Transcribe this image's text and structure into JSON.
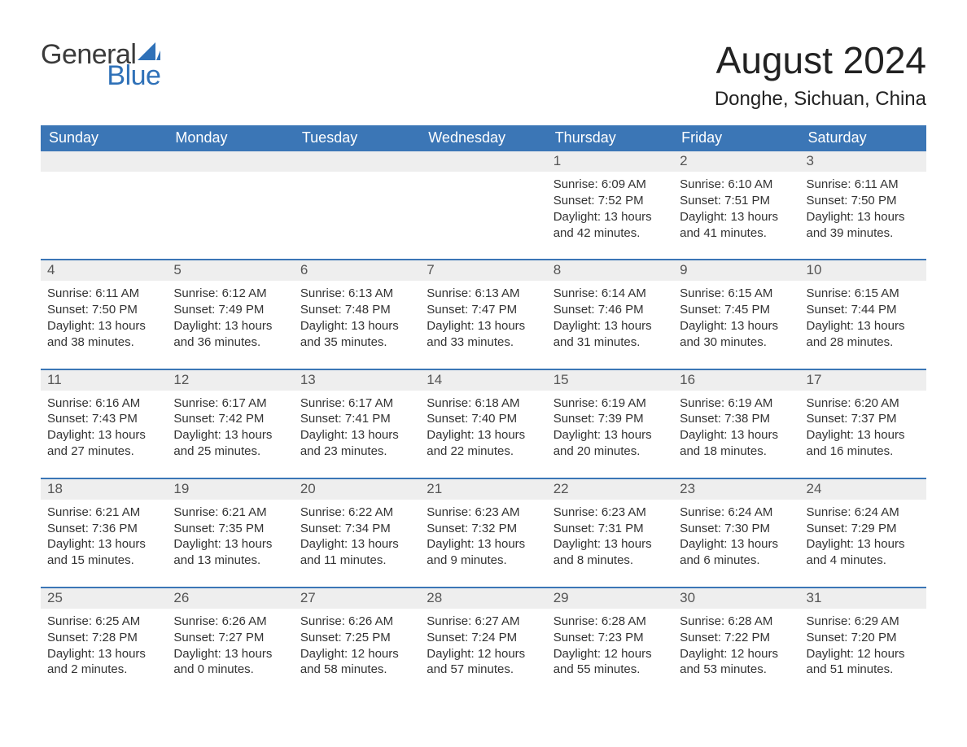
{
  "brand": {
    "word1": "General",
    "word2": "Blue",
    "word1_color": "#3a3a3a",
    "word2_color": "#2f71b8",
    "sail_color": "#2f71b8"
  },
  "header": {
    "title": "August 2024",
    "subtitle": "Donghe, Sichuan, China"
  },
  "colors": {
    "header_bg": "#3b76b6",
    "header_text": "#ffffff",
    "row_divider": "#3b76b6",
    "daynum_bg": "#eeeeee",
    "daynum_text": "#555555",
    "body_text": "#333333",
    "page_bg": "#ffffff"
  },
  "typography": {
    "title_fontsize": 46,
    "subtitle_fontsize": 24,
    "weekday_fontsize": 18,
    "daynum_fontsize": 17,
    "body_fontsize": 15,
    "font_family": "Arial"
  },
  "calendar": {
    "weekdays": [
      "Sunday",
      "Monday",
      "Tuesday",
      "Wednesday",
      "Thursday",
      "Friday",
      "Saturday"
    ],
    "weeks": [
      [
        null,
        null,
        null,
        null,
        {
          "n": "1",
          "sunrise": "6:09 AM",
          "sunset": "7:52 PM",
          "dl_h": "13",
          "dl_m": "42"
        },
        {
          "n": "2",
          "sunrise": "6:10 AM",
          "sunset": "7:51 PM",
          "dl_h": "13",
          "dl_m": "41"
        },
        {
          "n": "3",
          "sunrise": "6:11 AM",
          "sunset": "7:50 PM",
          "dl_h": "13",
          "dl_m": "39"
        }
      ],
      [
        {
          "n": "4",
          "sunrise": "6:11 AM",
          "sunset": "7:50 PM",
          "dl_h": "13",
          "dl_m": "38"
        },
        {
          "n": "5",
          "sunrise": "6:12 AM",
          "sunset": "7:49 PM",
          "dl_h": "13",
          "dl_m": "36"
        },
        {
          "n": "6",
          "sunrise": "6:13 AM",
          "sunset": "7:48 PM",
          "dl_h": "13",
          "dl_m": "35"
        },
        {
          "n": "7",
          "sunrise": "6:13 AM",
          "sunset": "7:47 PM",
          "dl_h": "13",
          "dl_m": "33"
        },
        {
          "n": "8",
          "sunrise": "6:14 AM",
          "sunset": "7:46 PM",
          "dl_h": "13",
          "dl_m": "31"
        },
        {
          "n": "9",
          "sunrise": "6:15 AM",
          "sunset": "7:45 PM",
          "dl_h": "13",
          "dl_m": "30"
        },
        {
          "n": "10",
          "sunrise": "6:15 AM",
          "sunset": "7:44 PM",
          "dl_h": "13",
          "dl_m": "28"
        }
      ],
      [
        {
          "n": "11",
          "sunrise": "6:16 AM",
          "sunset": "7:43 PM",
          "dl_h": "13",
          "dl_m": "27"
        },
        {
          "n": "12",
          "sunrise": "6:17 AM",
          "sunset": "7:42 PM",
          "dl_h": "13",
          "dl_m": "25"
        },
        {
          "n": "13",
          "sunrise": "6:17 AM",
          "sunset": "7:41 PM",
          "dl_h": "13",
          "dl_m": "23"
        },
        {
          "n": "14",
          "sunrise": "6:18 AM",
          "sunset": "7:40 PM",
          "dl_h": "13",
          "dl_m": "22"
        },
        {
          "n": "15",
          "sunrise": "6:19 AM",
          "sunset": "7:39 PM",
          "dl_h": "13",
          "dl_m": "20"
        },
        {
          "n": "16",
          "sunrise": "6:19 AM",
          "sunset": "7:38 PM",
          "dl_h": "13",
          "dl_m": "18"
        },
        {
          "n": "17",
          "sunrise": "6:20 AM",
          "sunset": "7:37 PM",
          "dl_h": "13",
          "dl_m": "16"
        }
      ],
      [
        {
          "n": "18",
          "sunrise": "6:21 AM",
          "sunset": "7:36 PM",
          "dl_h": "13",
          "dl_m": "15"
        },
        {
          "n": "19",
          "sunrise": "6:21 AM",
          "sunset": "7:35 PM",
          "dl_h": "13",
          "dl_m": "13"
        },
        {
          "n": "20",
          "sunrise": "6:22 AM",
          "sunset": "7:34 PM",
          "dl_h": "13",
          "dl_m": "11"
        },
        {
          "n": "21",
          "sunrise": "6:23 AM",
          "sunset": "7:32 PM",
          "dl_h": "13",
          "dl_m": "9"
        },
        {
          "n": "22",
          "sunrise": "6:23 AM",
          "sunset": "7:31 PM",
          "dl_h": "13",
          "dl_m": "8"
        },
        {
          "n": "23",
          "sunrise": "6:24 AM",
          "sunset": "7:30 PM",
          "dl_h": "13",
          "dl_m": "6"
        },
        {
          "n": "24",
          "sunrise": "6:24 AM",
          "sunset": "7:29 PM",
          "dl_h": "13",
          "dl_m": "4"
        }
      ],
      [
        {
          "n": "25",
          "sunrise": "6:25 AM",
          "sunset": "7:28 PM",
          "dl_h": "13",
          "dl_m": "2"
        },
        {
          "n": "26",
          "sunrise": "6:26 AM",
          "sunset": "7:27 PM",
          "dl_h": "13",
          "dl_m": "0"
        },
        {
          "n": "27",
          "sunrise": "6:26 AM",
          "sunset": "7:25 PM",
          "dl_h": "12",
          "dl_m": "58"
        },
        {
          "n": "28",
          "sunrise": "6:27 AM",
          "sunset": "7:24 PM",
          "dl_h": "12",
          "dl_m": "57"
        },
        {
          "n": "29",
          "sunrise": "6:28 AM",
          "sunset": "7:23 PM",
          "dl_h": "12",
          "dl_m": "55"
        },
        {
          "n": "30",
          "sunrise": "6:28 AM",
          "sunset": "7:22 PM",
          "dl_h": "12",
          "dl_m": "53"
        },
        {
          "n": "31",
          "sunrise": "6:29 AM",
          "sunset": "7:20 PM",
          "dl_h": "12",
          "dl_m": "51"
        }
      ]
    ],
    "labels": {
      "sunrise_prefix": "Sunrise: ",
      "sunset_prefix": "Sunset: ",
      "daylight_prefix": "Daylight: ",
      "hours_word": " hours",
      "and_word": "and ",
      "minutes_word": " minutes."
    }
  }
}
